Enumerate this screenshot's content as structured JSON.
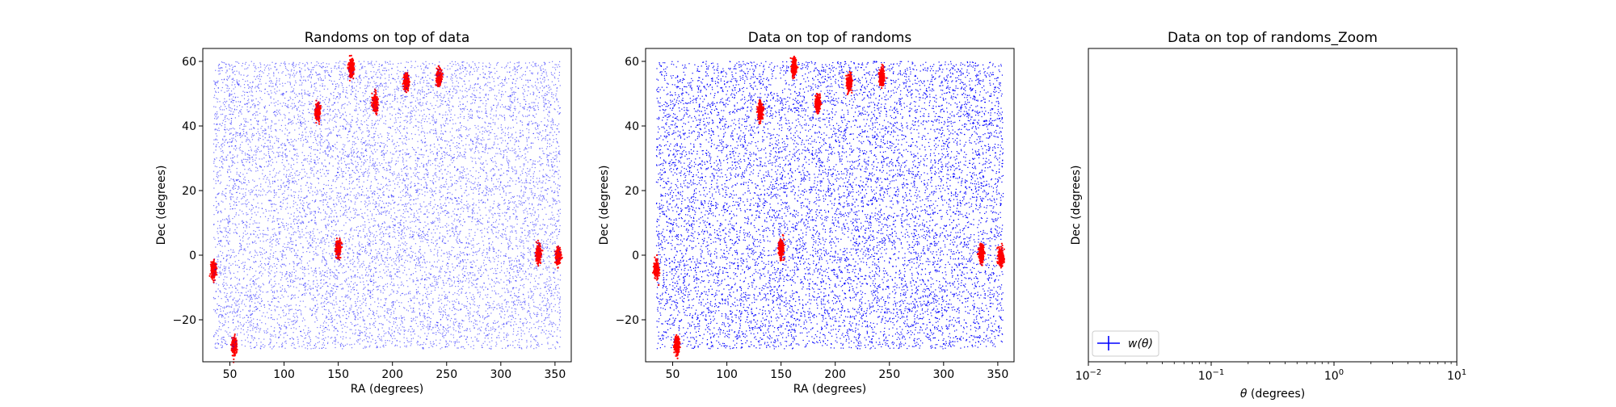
{
  "chart_data": [
    {
      "type": "scatter",
      "title": "Randoms on top of data",
      "xlabel": "RA (degrees)",
      "ylabel": "Dec (degrees)",
      "xlim": [
        25,
        365
      ],
      "ylim": [
        -33,
        64
      ],
      "xticks": [
        50,
        100,
        150,
        200,
        250,
        300,
        350
      ],
      "yticks": [
        -20,
        0,
        20,
        40,
        60
      ],
      "xtick_labels": [
        "50",
        "100",
        "150",
        "200",
        "250",
        "300",
        "350"
      ],
      "ytick_labels": [
        "−20",
        "0",
        "20",
        "40",
        "60"
      ],
      "grid": false,
      "draw_order": [
        "data",
        "randoms"
      ],
      "series": [
        {
          "role": "data",
          "color": "#ff0000",
          "marker": "small dots, tight clumps",
          "clusters": [
            {
              "ra": 162,
              "dec": 58
            },
            {
              "ra": 131,
              "dec": 44.5
            },
            {
              "ra": 184,
              "dec": 47
            },
            {
              "ra": 213,
              "dec": 53.5
            },
            {
              "ra": 243,
              "dec": 55
            },
            {
              "ra": 150,
              "dec": 2
            },
            {
              "ra": 35,
              "dec": -4.5
            },
            {
              "ra": 54,
              "dec": -28
            },
            {
              "ra": 335,
              "dec": 0.5
            },
            {
              "ra": 353,
              "dec": -0.5
            }
          ]
        },
        {
          "role": "randoms",
          "color": "#0000ff",
          "marker": "small dots, uniform",
          "ra_range": [
            35,
            355
          ],
          "dec_range": [
            -29,
            60
          ],
          "approx_count": 10000
        }
      ]
    },
    {
      "type": "scatter",
      "title": "Data on top of randoms",
      "xlabel": "RA (degrees)",
      "ylabel": "Dec (degrees)",
      "xlim": [
        25,
        365
      ],
      "ylim": [
        -33,
        64
      ],
      "xticks": [
        50,
        100,
        150,
        200,
        250,
        300,
        350
      ],
      "yticks": [
        -20,
        0,
        20,
        40,
        60
      ],
      "xtick_labels": [
        "50",
        "100",
        "150",
        "200",
        "250",
        "300",
        "350"
      ],
      "ytick_labels": [
        "−20",
        "0",
        "20",
        "40",
        "60"
      ],
      "grid": false,
      "draw_order": [
        "randoms",
        "data"
      ],
      "series": [
        {
          "role": "randoms",
          "color": "#0000ff",
          "marker": "small dots, uniform",
          "ra_range": [
            35,
            355
          ],
          "dec_range": [
            -29,
            60
          ],
          "approx_count": 10000
        },
        {
          "role": "data",
          "color": "#ff0000",
          "marker": "small dots, tight clumps",
          "clusters": [
            {
              "ra": 162,
              "dec": 58
            },
            {
              "ra": 131,
              "dec": 44.5
            },
            {
              "ra": 184,
              "dec": 47
            },
            {
              "ra": 213,
              "dec": 53.5
            },
            {
              "ra": 243,
              "dec": 55
            },
            {
              "ra": 150,
              "dec": 2
            },
            {
              "ra": 35,
              "dec": -4.5
            },
            {
              "ra": 54,
              "dec": -28
            },
            {
              "ra": 335,
              "dec": 0.5
            },
            {
              "ra": 353,
              "dec": -0.5
            }
          ]
        }
      ]
    },
    {
      "type": "line",
      "title": "Data on top of randoms_Zoom",
      "xlabel": "θ (degrees)",
      "ylabel": "Dec (degrees)",
      "xscale": "log",
      "xlim": [
        0.01,
        10
      ],
      "xticks": [
        0.01,
        0.1,
        1,
        10
      ],
      "xtick_labels": [
        {
          "base": "10",
          "exp": "−2"
        },
        {
          "base": "10",
          "exp": "−1"
        },
        {
          "base": "10",
          "exp": "0"
        },
        {
          "base": "10",
          "exp": "1"
        }
      ],
      "grid": false,
      "legend": {
        "position": "lower-left",
        "entries": [
          {
            "label": "w(θ)",
            "color": "#0000ff",
            "marker": "errorbar"
          }
        ]
      },
      "series": []
    }
  ]
}
